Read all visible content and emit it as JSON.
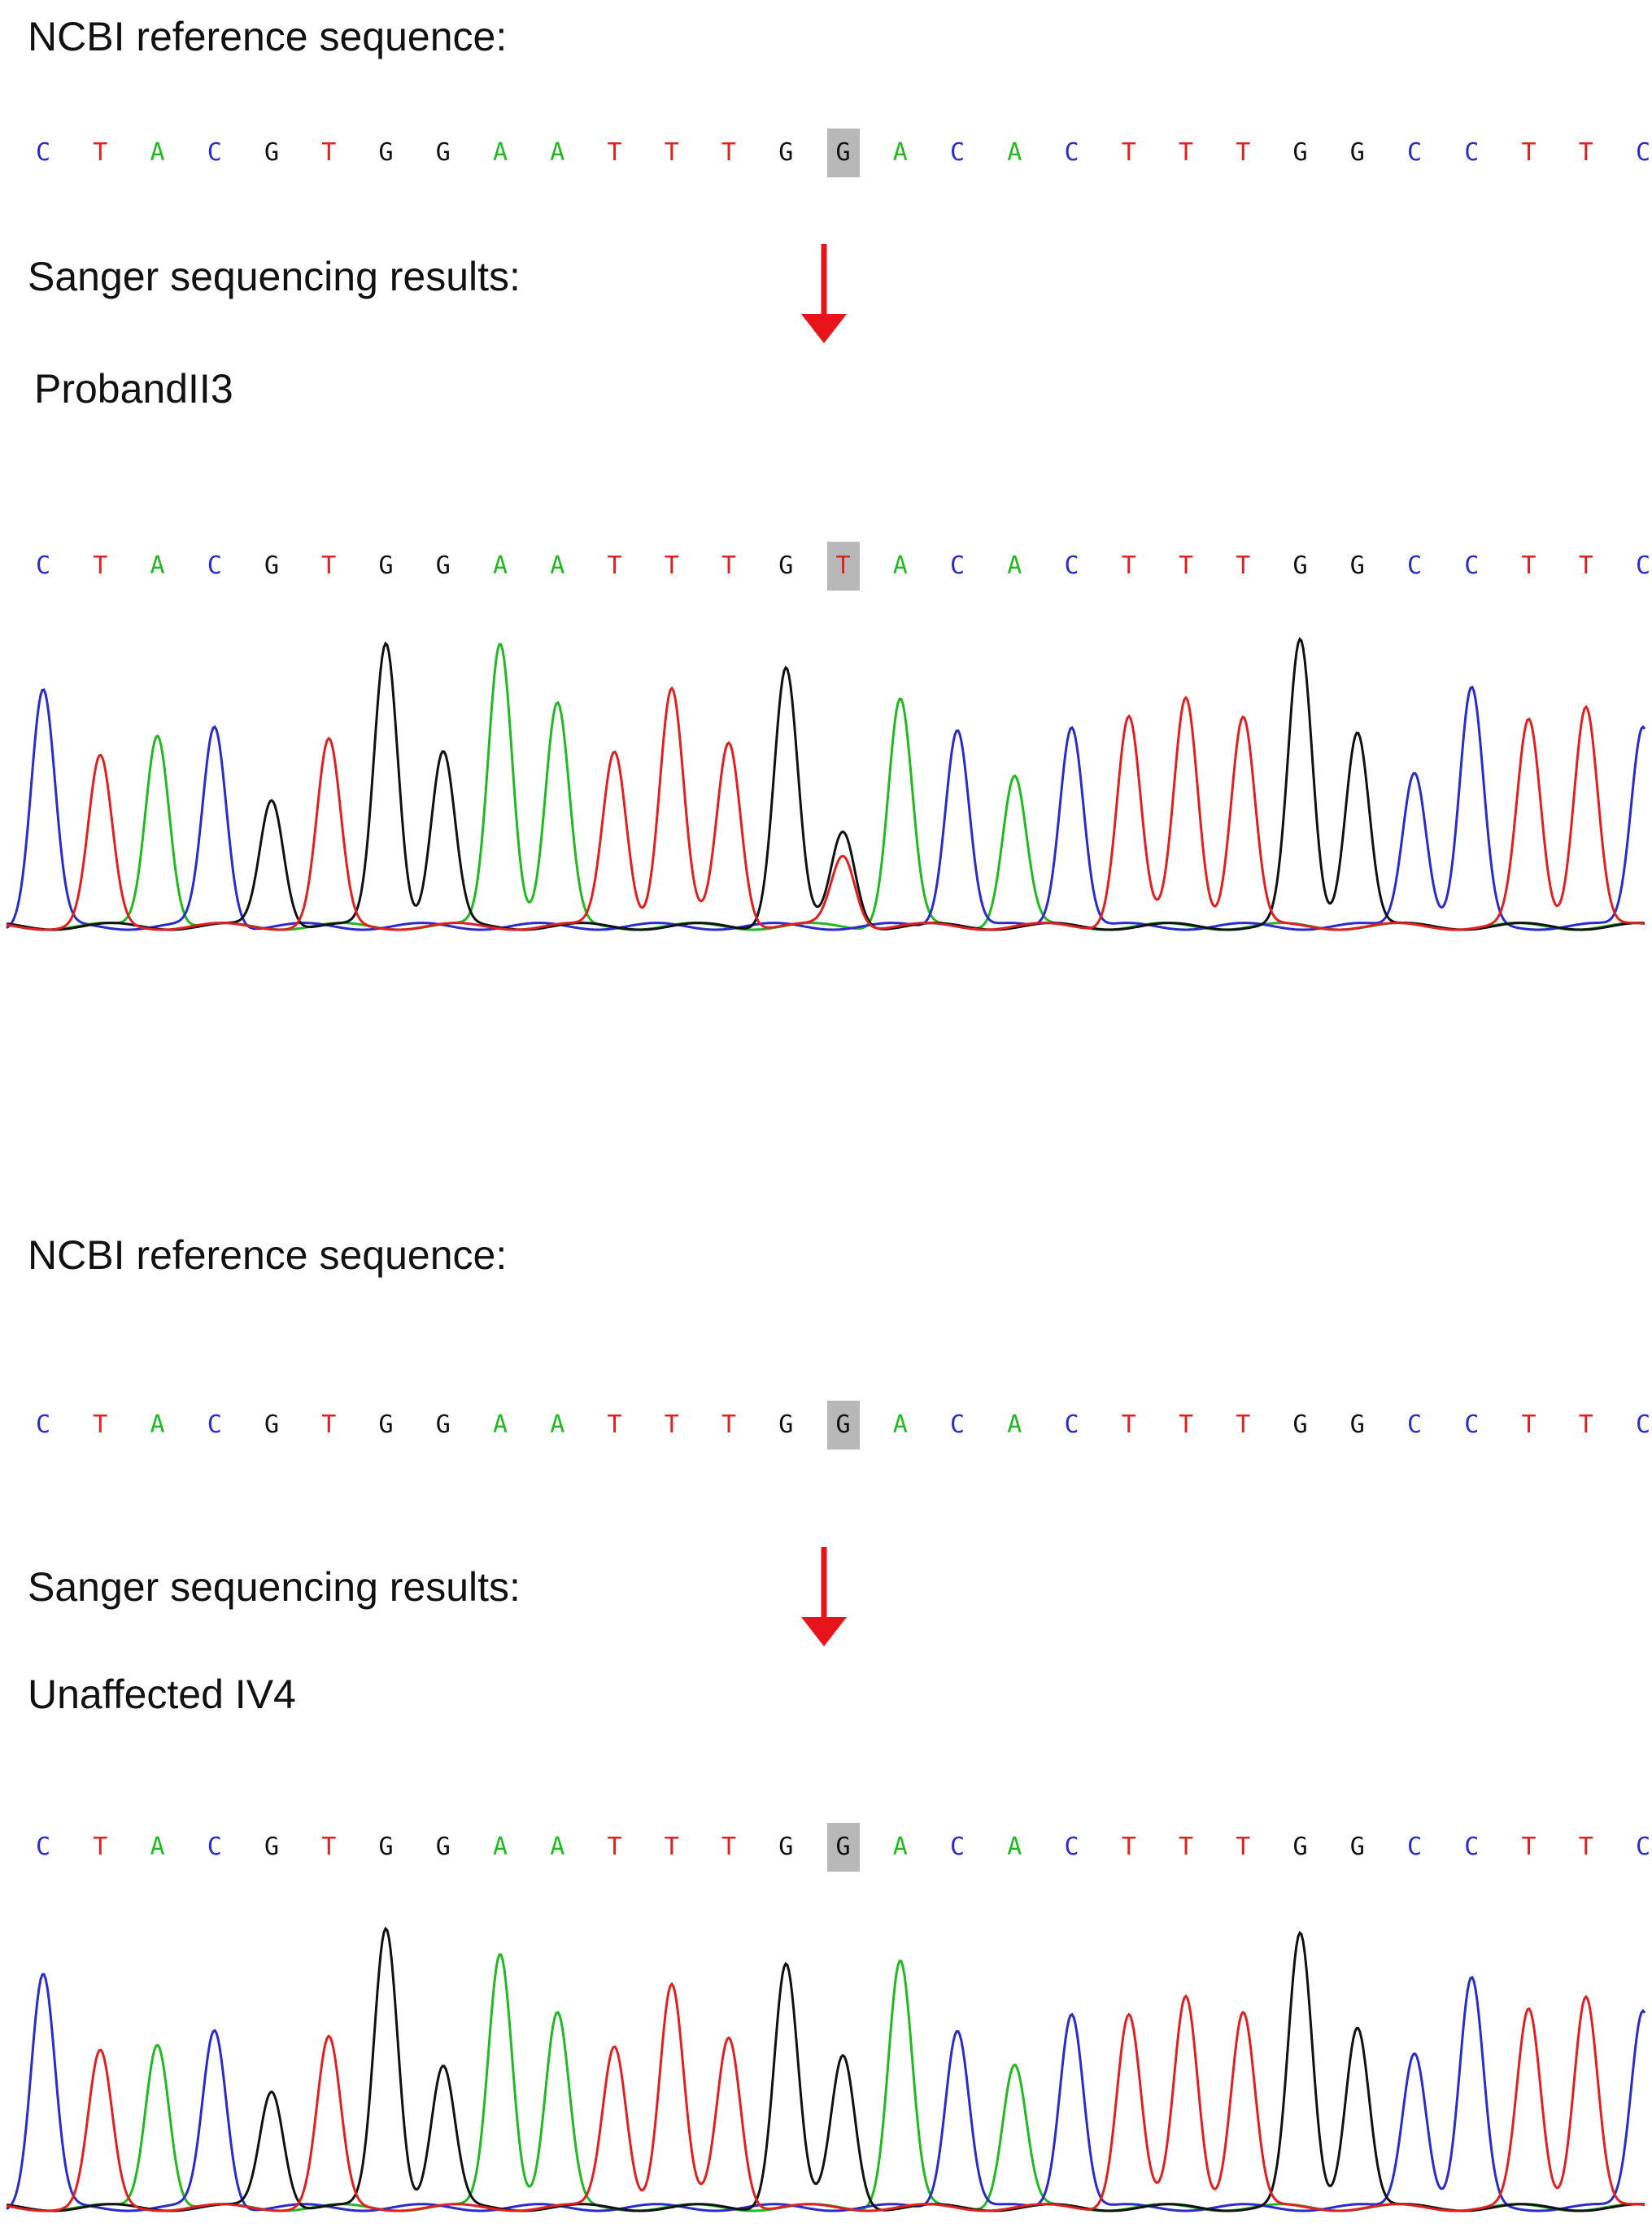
{
  "colors": {
    "A": "#22b822",
    "C": "#2b2bcc",
    "G": "#111111",
    "T": "#e02020",
    "arrow": "#e8141c",
    "highlight": "#b8b8b8"
  },
  "panels": [
    {
      "reference_label": "NCBI reference sequence:",
      "reference_sequence": [
        "C",
        "T",
        "A",
        "C",
        "G",
        "T",
        "G",
        "G",
        "A",
        "A",
        "T",
        "T",
        "T",
        "G",
        "G",
        "A",
        "C",
        "A",
        "C",
        "T",
        "T",
        "T",
        "G",
        "G",
        "C",
        "C",
        "T",
        "T",
        "C"
      ],
      "highlight_index": 14,
      "results_label": "Sanger sequencing results:",
      "sample_label": "ProbandII3",
      "called_sequence": [
        "C",
        "T",
        "A",
        "C",
        "G",
        "T",
        "G",
        "G",
        "A",
        "A",
        "T",
        "T",
        "T",
        "G",
        "T",
        "A",
        "C",
        "A",
        "C",
        "T",
        "T",
        "T",
        "G",
        "G",
        "C",
        "C",
        "T",
        "T",
        "C"
      ],
      "peaks": [
        0.83,
        0.59,
        0.68,
        0.7,
        0.45,
        0.65,
        1.0,
        0.61,
        1.0,
        0.78,
        0.62,
        0.83,
        0.65,
        0.91,
        0.25,
        0.8,
        0.7,
        0.53,
        0.71,
        0.74,
        0.8,
        0.74,
        1.0,
        0.69,
        0.55,
        0.83,
        0.72,
        0.78,
        0.71
      ],
      "secondary_peaks": [
        {
          "index": 14,
          "base": "G",
          "height": 0.33
        }
      ]
    },
    {
      "reference_label": "NCBI reference sequence:",
      "reference_sequence": [
        "C",
        "T",
        "A",
        "C",
        "G",
        "T",
        "G",
        "G",
        "A",
        "A",
        "T",
        "T",
        "T",
        "G",
        "G",
        "A",
        "C",
        "A",
        "C",
        "T",
        "T",
        "T",
        "G",
        "G",
        "C",
        "C",
        "T",
        "T",
        "C"
      ],
      "highlight_index": 14,
      "results_label": "Sanger sequencing results:",
      "sample_label": "Unaffected IV4",
      "called_sequence": [
        "C",
        "T",
        "A",
        "C",
        "G",
        "T",
        "G",
        "G",
        "A",
        "A",
        "T",
        "T",
        "T",
        "G",
        "G",
        "A",
        "C",
        "A",
        "C",
        "T",
        "T",
        "T",
        "G",
        "G",
        "C",
        "C",
        "T",
        "T",
        "C"
      ],
      "peaks": [
        0.83,
        0.55,
        0.59,
        0.63,
        0.42,
        0.6,
        1.0,
        0.5,
        0.91,
        0.69,
        0.58,
        0.79,
        0.61,
        0.87,
        0.54,
        0.88,
        0.64,
        0.51,
        0.7,
        0.69,
        0.75,
        0.7,
        0.97,
        0.65,
        0.56,
        0.81,
        0.7,
        0.76,
        0.71
      ],
      "secondary_peaks": []
    }
  ]
}
